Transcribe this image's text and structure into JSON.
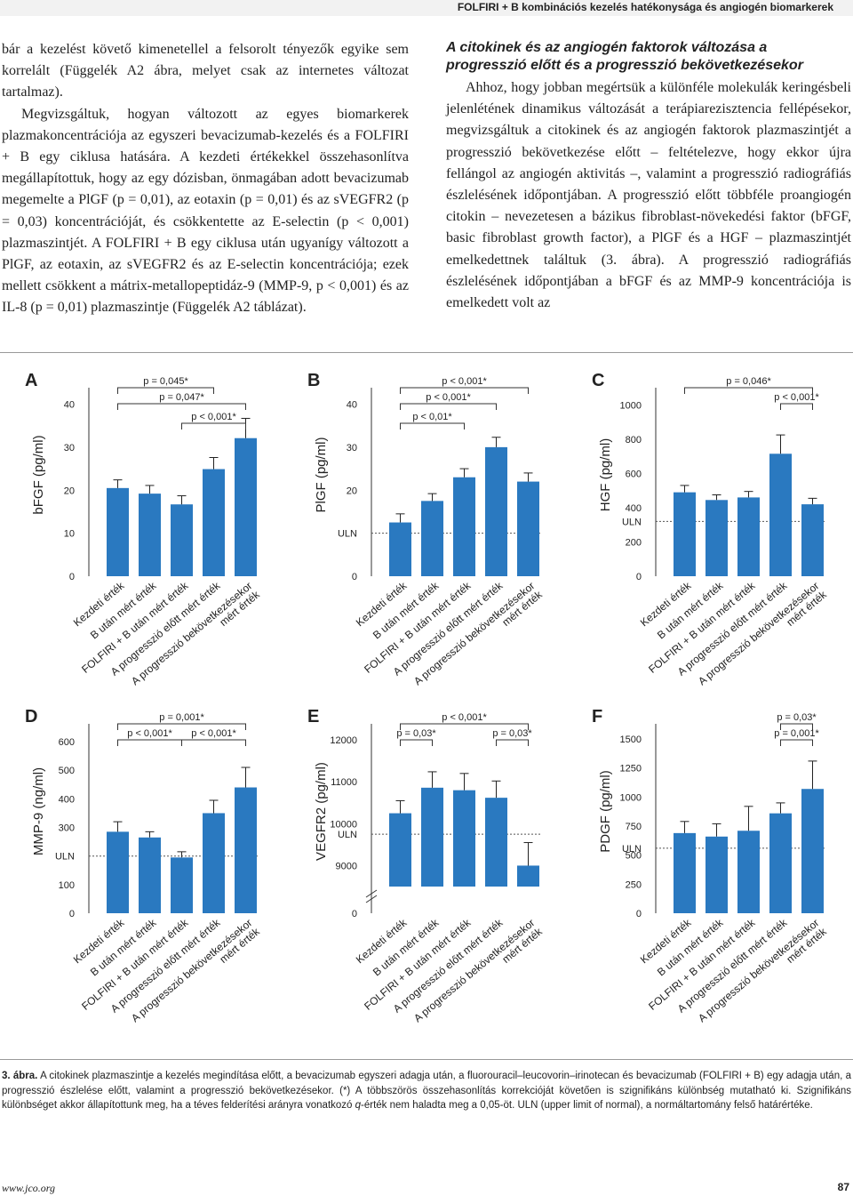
{
  "header": {
    "running_title": "FOLFIRI + B kombinációs kezelés hatékonysága és angiogén biomarkerek"
  },
  "text": {
    "left_p1": "bár a kezelést követő kimenetellel a felsorolt tényezők egyike sem korrelált (Függelék A2 ábra, melyet csak az internetes változat tartalmaz).",
    "left_p2": "Megvizsgáltuk, hogyan változott az egyes biomarkerek plazmakoncentrációja az egyszeri bevacizumab-kezelés és a FOLFIRI + B egy ciklusa hatására. A kezdeti értékekkel összehasonlítva megállapítottuk, hogy az egy dózisban, önmagában adott bevacizumab megemelte a PlGF (p = 0,01), az eotaxin (p = 0,01) és az sVEGFR2 (p = 0,03) koncentrációját, és csökkentette az E-selectin (p < 0,001) plazmaszintjét. A FOLFIRI + B egy ciklusa után ugyanígy változott a PlGF, az eotaxin, az sVEGFR2 és az E-selectin koncentrációja; ezek mellett csökkent a mátrix-metallopeptidáz-9 (MMP-9, p < 0,001) és az IL-8 (p = 0,01) plazmaszintje (Függelék A2 táblázat).",
    "right_heading": "A citokinek és az angiogén faktorok változása a progresszió előtt és a progresszió bekövetkezésekor",
    "right_p1": "Ahhoz, hogy jobban megértsük a különféle molekulák keringésbeli jelenlétének dinamikus változását a terápiarezisztencia fellépésekor, megvizsgáltuk a citokinek és az angiogén faktorok plazmaszintjét a progresszió bekövetkezése előtt – feltételezve, hogy ekkor újra fellángol az angiogén aktivitás –, valamint a progresszió radiográfiás észlelésének időpontjában. A progresszió előtt többféle proangiogén citokin – nevezetesen a bázikus fibroblast-növekedési faktor (bFGF, basic fibroblast growth factor), a PlGF és a HGF – plazmaszintjét emelkedettnek találtuk (3. ábra). A progresszió radiográfiás észlelésének időpontjában a bFGF és az MMP-9 koncentrációja is emelkedett volt az"
  },
  "figure": {
    "bar_color": "#2a79c0",
    "categories": [
      "Kezdeti érték",
      "B után mért érték",
      "FOLFIRI + B után mért érték",
      "A progresszió előtt mért érték",
      "A progresszió bekövetkezésekor mért érték"
    ],
    "uln_label": "ULN"
  },
  "chart_data": [
    {
      "type": "bar",
      "panel": "A",
      "ylabel": "bFGF (pg/ml)",
      "ylim": [
        0,
        43
      ],
      "yticks": [
        "0",
        "10",
        "20",
        "30",
        "40"
      ],
      "values": [
        20.5,
        19.2,
        16.7,
        24.9,
        32.1
      ],
      "errors": [
        1.9,
        1.9,
        2.0,
        2.7,
        4.6
      ],
      "uln": null,
      "annotations": [
        {
          "text": "p = 0,045*",
          "from": 0,
          "to": 3,
          "level": 0
        },
        {
          "text": "p = 0,047*",
          "from": 0,
          "to": 4,
          "level": 1
        },
        {
          "text": "p < 0,001*",
          "from": 2,
          "to": 4,
          "level": 2
        }
      ]
    },
    {
      "type": "bar",
      "panel": "B",
      "ylabel": "PlGF (pg/ml)",
      "ylim": [
        0,
        43
      ],
      "yticks": [
        "0",
        "ULN",
        "20",
        "30",
        "40"
      ],
      "values": [
        12.5,
        17.5,
        23.0,
        30.0,
        22.0
      ],
      "errors": [
        2.0,
        1.7,
        2.0,
        2.3,
        2.0
      ],
      "uln": 10,
      "annotations": [
        {
          "text": "p < 0,001*",
          "from": 0,
          "to": 4,
          "level": 0
        },
        {
          "text": "p < 0,001*",
          "from": 0,
          "to": 3,
          "level": 1
        },
        {
          "text": "p < 0,01*",
          "from": 0,
          "to": 2,
          "level": 2
        }
      ]
    },
    {
      "type": "bar",
      "panel": "C",
      "ylabel": "HGF (pg/ml)",
      "ylim": [
        0,
        1080
      ],
      "yticks": [
        "0",
        "200",
        "ULN",
        "400",
        "600",
        "800",
        "1000"
      ],
      "values": [
        490,
        445,
        460,
        715,
        420
      ],
      "errors": [
        40,
        30,
        35,
        110,
        35
      ],
      "uln": 320,
      "annotations": [
        {
          "text": "p = 0,046*",
          "from": 0,
          "to": 4,
          "level": 0
        },
        {
          "text": "p < 0,001*",
          "from": 3,
          "to": 4,
          "level": 1
        }
      ]
    },
    {
      "type": "bar",
      "panel": "D",
      "ylabel": "MMP-9 (ng/ml)",
      "ylim": [
        0,
        650
      ],
      "yticks": [
        "0",
        "100",
        "ULN",
        "300",
        "400",
        "500",
        "600"
      ],
      "values": [
        285,
        265,
        195,
        350,
        440
      ],
      "errors": [
        35,
        20,
        20,
        45,
        70
      ],
      "uln": 200,
      "annotations": [
        {
          "text": "p = 0,001*",
          "from": 0,
          "to": 4,
          "level": 0
        },
        {
          "text": "p < 0,001*",
          "from": 0,
          "to": 2,
          "level": 1
        },
        {
          "text": "p < 0,001*",
          "from": 2,
          "to": 4,
          "level": 1
        }
      ]
    },
    {
      "type": "bar",
      "panel": "E",
      "ylabel": "VEGFR2 (pg/ml)",
      "ylim": [
        8500,
        12300
      ],
      "yticks": [
        "0",
        "9000",
        "ULN",
        "10000",
        "11000",
        "12000"
      ],
      "values": [
        10250,
        10860,
        10800,
        10620,
        9000
      ],
      "errors": [
        300,
        380,
        400,
        400,
        550
      ],
      "uln": 9750,
      "annotations": [
        {
          "text": "p < 0,001*",
          "from": 0,
          "to": 4,
          "level": 0
        },
        {
          "text": "p = 0,03*",
          "from": 0,
          "to": 1,
          "level": 1
        },
        {
          "text": "p = 0,03*",
          "from": 3,
          "to": 4,
          "level": 1
        }
      ]
    },
    {
      "type": "bar",
      "panel": "F",
      "ylabel": "PDGF (pg/ml)",
      "ylim": [
        0,
        1600
      ],
      "yticks": [
        "0",
        "250",
        "500",
        "ULN",
        "750",
        "1000",
        "1250",
        "1500"
      ],
      "values": [
        690,
        660,
        710,
        860,
        1070
      ],
      "errors": [
        100,
        110,
        210,
        90,
        240
      ],
      "uln": 560,
      "annotations": [
        {
          "text": "p = 0,03*",
          "from": 3,
          "to": 4,
          "level": 0
        },
        {
          "text": "p = 0,001*",
          "from": 3,
          "to": 4,
          "level": 1
        }
      ]
    }
  ],
  "caption": {
    "label": "3. ábra.",
    "text": "A citokinek plazmaszintje a kezelés megindítása előtt, a bevacizumab egyszeri adagja után, a fluorouracil–leucovorin–irinotecan és bevacizumab (FOLFIRI + B) egy adagja után, a progresszió észlelése előtt, valamint a progresszió bekövetkezésekor. (*) A többszörös összehasonlítás korrekcióját követően is szignifikáns különbség mutatható ki. Szignifikáns különbséget akkor állapítottunk meg, ha a téves felderítési arányra vonatkozó ",
    "q": "q",
    "text2": "-érték nem haladta meg a 0,05-öt. ULN (upper limit of normal), a normáltartomány felső határértéke."
  },
  "footer": {
    "url": "www.jco.org",
    "page": "87"
  }
}
